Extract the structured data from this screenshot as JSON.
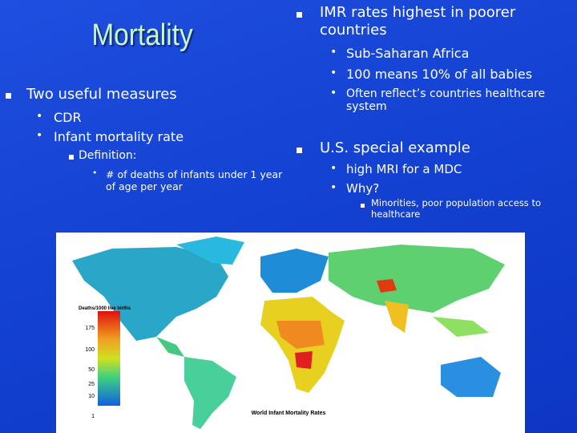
{
  "title": "Mortality",
  "left": {
    "heading": "Two useful measures",
    "items": [
      "CDR",
      "Infant mortality rate"
    ],
    "definition": {
      "label": "Definition:",
      "text": "# of deaths of infants under 1 year of age per year"
    }
  },
  "right": [
    {
      "heading": "IMR rates highest in poorer countries",
      "items": [
        "Sub-Saharan Africa",
        "100 means 10% of all babies",
        "Often reflect’s countries healthcare system"
      ]
    },
    {
      "heading": "U.S. special example",
      "items": [
        "high MRI for a MDC",
        "Why?"
      ],
      "note": "Minorities, poor population access to healthcare"
    }
  ],
  "map": {
    "legend_title": "Deaths/1000 live births",
    "legend_ticks": [
      175,
      100,
      50,
      25,
      10,
      1
    ],
    "caption": "World Infant Mortality Rates"
  }
}
